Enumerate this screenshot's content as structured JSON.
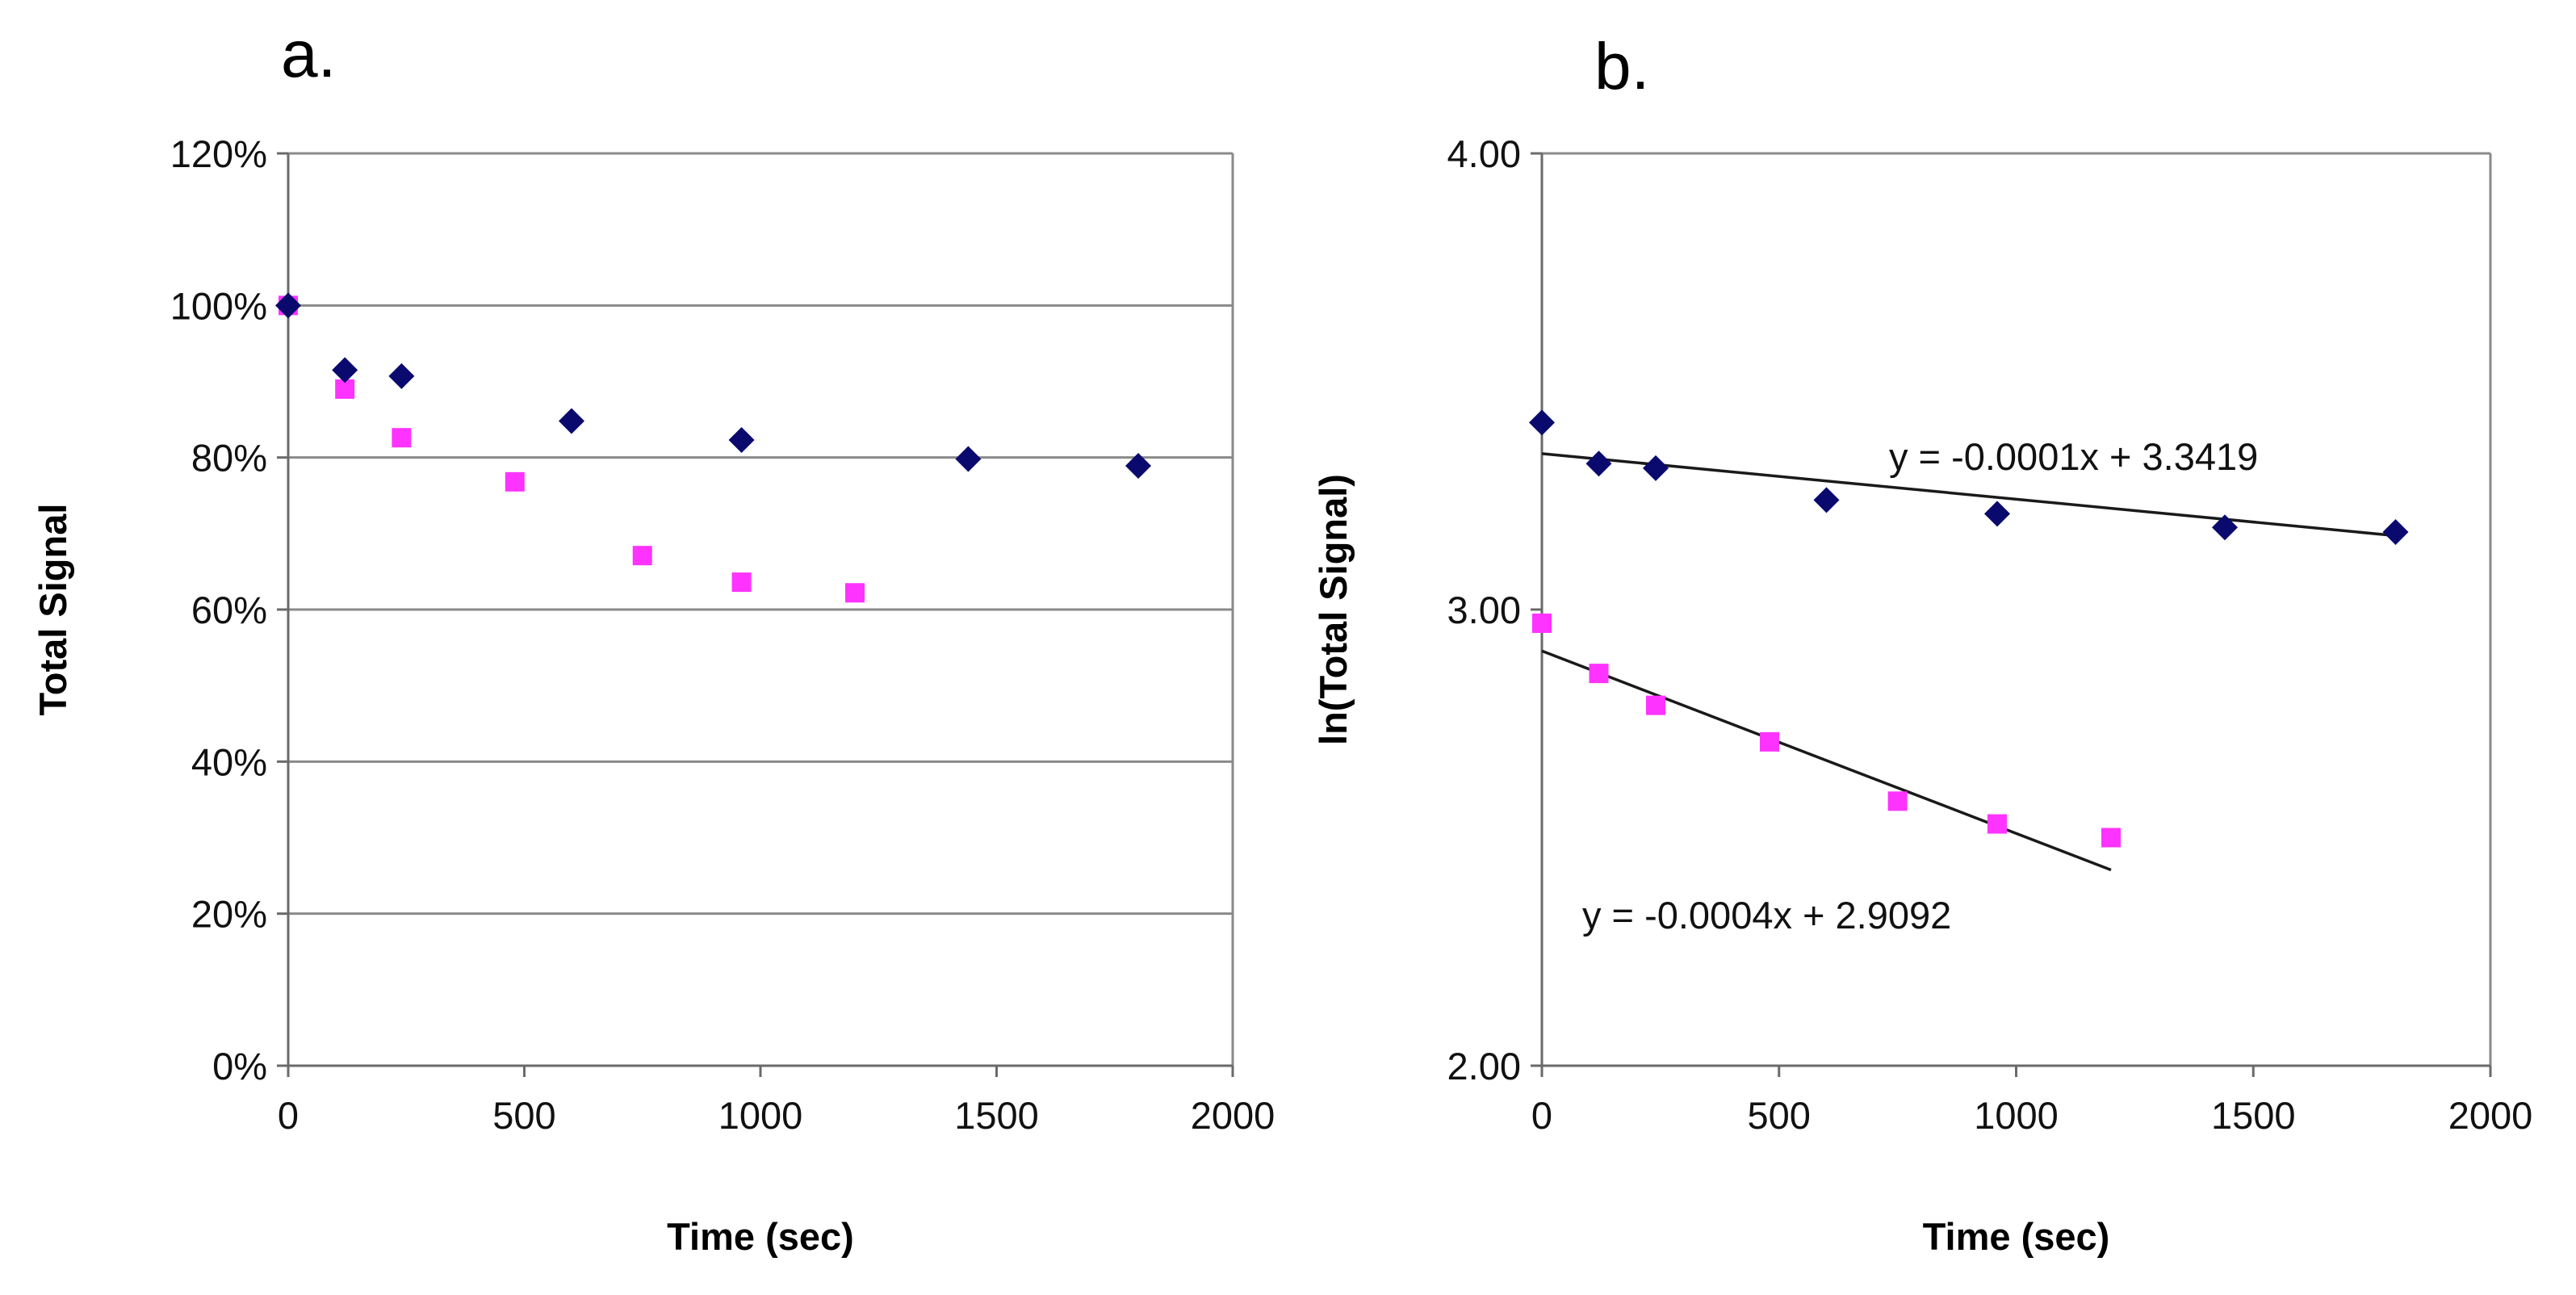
{
  "chart_data": [
    {
      "panel": "a.",
      "type": "scatter",
      "xlabel": "Time (sec)",
      "ylabel": "Total Signal",
      "xlim": [
        0,
        2000
      ],
      "ylim": [
        0,
        1.2
      ],
      "xticks": [
        0,
        500,
        1000,
        1500,
        2000
      ],
      "xtick_labels": [
        "0",
        "500",
        "1000",
        "1500",
        "2000"
      ],
      "yticks": [
        0,
        0.2,
        0.4,
        0.6,
        0.8,
        1.0,
        1.2
      ],
      "ytick_labels": [
        "0%",
        "20%",
        "40%",
        "60%",
        "80%",
        "100%",
        "120%"
      ],
      "grid": "horizontal",
      "series": [
        {
          "name": "blue",
          "marker": "diamond",
          "color": "#0a0a6e",
          "x": [
            0,
            120,
            240,
            600,
            960,
            1440,
            1800
          ],
          "y": [
            1.0,
            0.915,
            0.907,
            0.848,
            0.823,
            0.798,
            0.789
          ]
        },
        {
          "name": "magenta",
          "marker": "square",
          "color": "#ff33ff",
          "x": [
            0,
            120,
            240,
            480,
            750,
            960,
            1200
          ],
          "y": [
            1.0,
            0.89,
            0.826,
            0.768,
            0.671,
            0.636,
            0.622
          ]
        }
      ]
    },
    {
      "panel": "b.",
      "type": "scatter",
      "xlabel": "Time (sec)",
      "ylabel": "ln(Total Signal)",
      "xlim": [
        0,
        2000
      ],
      "ylim": [
        2,
        4
      ],
      "xticks": [
        0,
        500,
        1000,
        1500,
        2000
      ],
      "xtick_labels": [
        "0",
        "500",
        "1000",
        "1500",
        "2000"
      ],
      "yticks": [
        2,
        3,
        4
      ],
      "ytick_labels": [
        "2.00",
        "3.00",
        "4.00"
      ],
      "grid": "none",
      "series": [
        {
          "name": "blue",
          "marker": "diamond",
          "color": "#0a0a6e",
          "x": [
            0,
            120,
            240,
            600,
            960,
            1440,
            1800
          ],
          "y": [
            3.41,
            3.32,
            3.31,
            3.24,
            3.21,
            3.18,
            3.17
          ],
          "trendline": {
            "x": [
              0,
              1800
            ],
            "slope": -0.0001,
            "intercept": 3.3419,
            "equation": "y = -0.0001x + 3.3419"
          }
        },
        {
          "name": "magenta",
          "marker": "square",
          "color": "#ff33ff",
          "x": [
            0,
            120,
            240,
            480,
            750,
            960,
            1200
          ],
          "y": [
            2.97,
            2.86,
            2.79,
            2.71,
            2.58,
            2.53,
            2.5
          ],
          "trendline": {
            "x": [
              0,
              1200
            ],
            "slope": -0.0004,
            "intercept": 2.9092,
            "equation": "y = -0.0004x + 2.9092"
          }
        }
      ]
    }
  ]
}
